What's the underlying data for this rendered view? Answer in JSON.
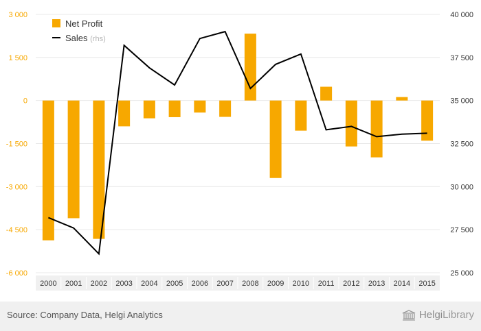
{
  "chart_data": {
    "type": "bar+line",
    "categories": [
      "2000",
      "2001",
      "2002",
      "2003",
      "2004",
      "2005",
      "2006",
      "2007",
      "2008",
      "2009",
      "2010",
      "2011",
      "2012",
      "2013",
      "2014",
      "2015"
    ],
    "series": [
      {
        "name": "Net Profit",
        "type": "bar",
        "axis": "left",
        "color": "#f7a800",
        "values": [
          -4870,
          -4100,
          -4820,
          -900,
          -620,
          -580,
          -420,
          -570,
          2330,
          -2700,
          -1050,
          480,
          -1600,
          -1980,
          120,
          -1400
        ]
      },
      {
        "name": "Sales",
        "name_suffix": "(rhs)",
        "type": "line",
        "axis": "right",
        "color": "#000000",
        "values": [
          28200,
          27600,
          26100,
          38200,
          36900,
          35900,
          38600,
          39000,
          35700,
          37100,
          37700,
          33300,
          33500,
          32900,
          33050,
          33100
        ]
      }
    ],
    "left_axis": {
      "ylim": [
        -6000,
        3000
      ],
      "ticks": [
        3000,
        1500,
        0,
        -1500,
        -3000,
        -4500,
        -6000
      ],
      "tick_labels": [
        "3 000",
        "1 500",
        "0",
        "-1 500",
        "-3 000",
        "-4 500",
        "-6 000"
      ]
    },
    "right_axis": {
      "ylim": [
        25000,
        40000
      ],
      "ticks": [
        40000,
        37500,
        35000,
        32500,
        30000,
        27500,
        25000
      ],
      "tick_labels": [
        "40 000",
        "37 500",
        "35 000",
        "32 500",
        "30 000",
        "27 500",
        "25 000"
      ]
    },
    "grid": true,
    "legend_position": "top-left",
    "legend": [
      {
        "label": "Net Profit",
        "suffix": ""
      },
      {
        "label": "Sales",
        "suffix": "(rhs)"
      }
    ],
    "colors": {
      "left_tick": "#f7a800",
      "right_tick": "#333333",
      "grid": "#e8e8e8",
      "category_band": "#f0f0f0"
    }
  },
  "footer": {
    "source": "Source: Company Data, Helgi Analytics",
    "brand_prefix": "Helgi",
    "brand_suffix": "Library",
    "brand_icon": "library-building-icon"
  }
}
